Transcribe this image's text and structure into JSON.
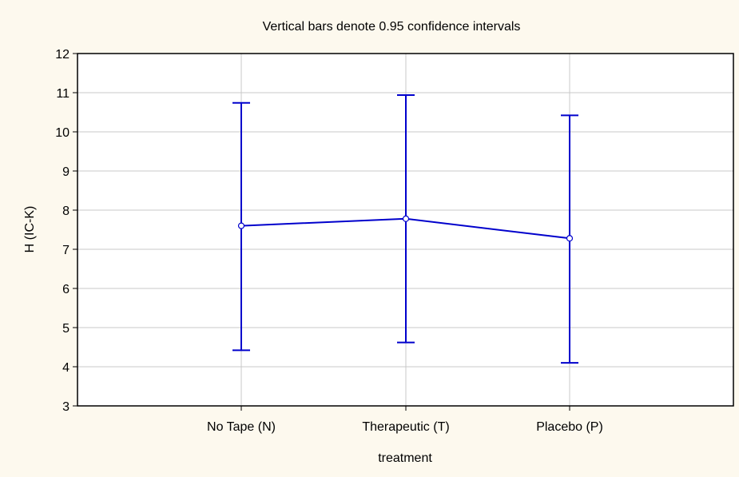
{
  "chart_data": {
    "type": "line",
    "title": "Vertical bars denote 0.95 confidence intervals",
    "xlabel": "treatment",
    "ylabel": "H (IC-K)",
    "ylim": [
      3,
      12
    ],
    "yticks": [
      3,
      4,
      5,
      6,
      7,
      8,
      9,
      10,
      11,
      12
    ],
    "categories": [
      "No Tape (N)",
      "Therapeutic (T)",
      "Placebo (P)"
    ],
    "series": [
      {
        "values": [
          7.6,
          7.78,
          7.28
        ],
        "ci_lower": [
          4.42,
          4.62,
          4.1
        ],
        "ci_upper": [
          10.74,
          10.94,
          10.42
        ]
      }
    ],
    "grid": true,
    "legend": "none",
    "colors": {
      "series": "#0000cc",
      "background": "#fdf9ee",
      "plot_area": "#ffffff",
      "grid": "#c8c8c8"
    }
  }
}
